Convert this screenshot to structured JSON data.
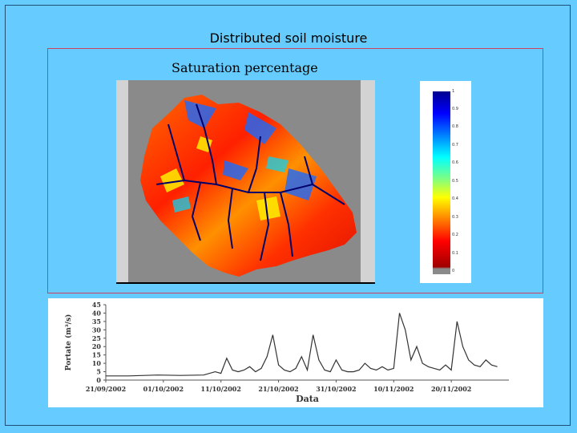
{
  "slide": {
    "title": "Distributed soil moisture",
    "map_subtitle": "Saturation percentage"
  },
  "colorbar": {
    "tick_labels": [
      "1",
      "0.9",
      "0.8",
      "0.7",
      "0.6",
      "0.5",
      "0.4",
      "0.3",
      "0.2",
      "0.1",
      "0"
    ]
  },
  "chart_data": {
    "type": "line",
    "title": "",
    "xlabel": "Data",
    "ylabel": "Portate (m³/s)",
    "x_tick_labels": [
      "21/09/2002",
      "01/10/2002",
      "11/10/2002",
      "21/10/2002",
      "31/10/2002",
      "10/11/2002",
      "20/11/2002"
    ],
    "y_tick_labels": [
      "0",
      "5",
      "10",
      "15",
      "20",
      "25",
      "30",
      "35",
      "40",
      "45"
    ],
    "ylim": [
      0,
      45
    ],
    "xlim": [
      "2002-09-21",
      "2002-11-30"
    ],
    "grid": false,
    "series_color": "#333333",
    "series": [
      {
        "x": [
          "2002-09-21",
          "2002-09-25",
          "2002-09-30",
          "2002-10-04",
          "2002-10-08",
          "2002-10-10",
          "2002-10-11",
          "2002-10-12",
          "2002-10-13",
          "2002-10-14",
          "2002-10-15",
          "2002-10-16",
          "2002-10-17",
          "2002-10-18",
          "2002-10-19",
          "2002-10-20",
          "2002-10-21",
          "2002-10-22",
          "2002-10-23",
          "2002-10-24",
          "2002-10-25",
          "2002-10-26",
          "2002-10-27",
          "2002-10-28",
          "2002-10-29",
          "2002-10-30",
          "2002-10-31",
          "2002-11-01",
          "2002-11-02",
          "2002-11-03",
          "2002-11-04",
          "2002-11-05",
          "2002-11-06",
          "2002-11-07",
          "2002-11-08",
          "2002-11-09",
          "2002-11-10",
          "2002-11-11",
          "2002-11-12",
          "2002-11-13",
          "2002-11-14",
          "2002-11-15",
          "2002-11-16",
          "2002-11-17",
          "2002-11-18",
          "2002-11-19",
          "2002-11-20",
          "2002-11-21",
          "2002-11-22",
          "2002-11-23",
          "2002-11-24",
          "2002-11-25",
          "2002-11-26",
          "2002-11-27",
          "2002-11-28"
        ],
        "y": [
          2.5,
          2.5,
          3,
          2.8,
          3,
          5,
          4,
          13,
          6,
          5,
          6,
          8,
          5,
          7,
          14,
          27,
          9,
          6,
          5,
          7,
          14,
          6,
          27,
          12,
          6,
          5,
          12,
          6,
          5,
          5,
          6,
          10,
          7,
          6,
          8,
          6,
          7,
          40,
          30,
          12,
          20,
          10,
          8,
          7,
          6,
          9,
          6,
          35,
          20,
          12,
          9,
          8,
          12,
          9,
          8
        ]
      }
    ]
  }
}
